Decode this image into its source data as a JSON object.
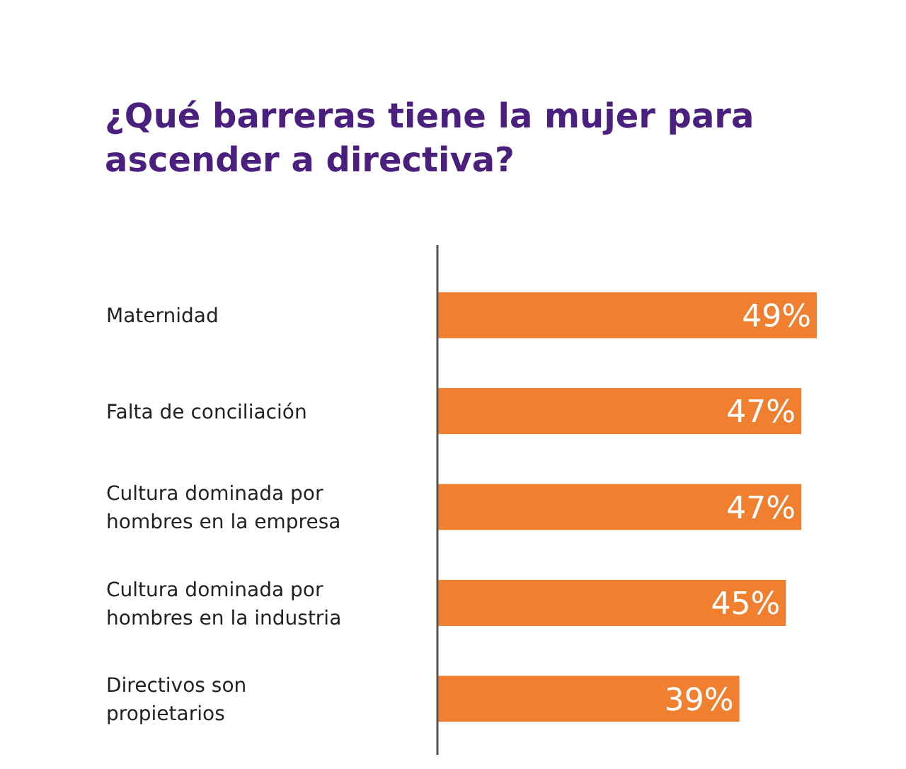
{
  "chart_data": {
    "type": "bar",
    "orientation": "horizontal",
    "title": "¿Qué barreras tiene la mujer para ascender a directiva?",
    "categories": [
      "Maternidad",
      "Falta de conciliación",
      "Cultura dominada por hombres en la empresa",
      "Cultura dominada por hombres en la industria",
      "Directivos son propietarios"
    ],
    "values": [
      49,
      47,
      47,
      45,
      39
    ],
    "value_labels": [
      "49%",
      "47%",
      "47%",
      "45%",
      "39%"
    ],
    "color": "#f08030"
  }
}
